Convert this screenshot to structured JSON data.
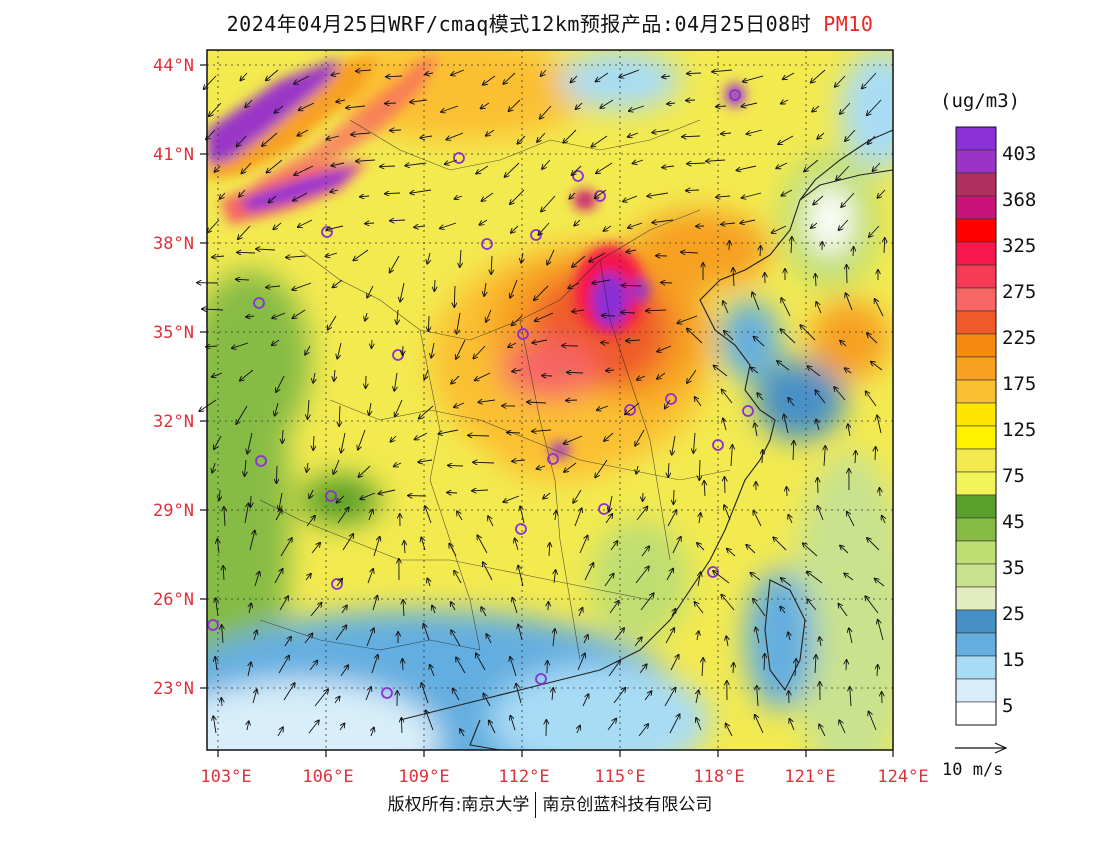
{
  "title": {
    "text": "2024年04月25日WRF/cmaq模式12km预报产品:04月25日08时",
    "pollutant": "PM10"
  },
  "map": {
    "lat_labels": [
      "44°N",
      "41°N",
      "38°N",
      "35°N",
      "32°N",
      "29°N",
      "26°N",
      "23°N"
    ],
    "lon_labels": [
      "103°E",
      "106°E",
      "109°E",
      "112°E",
      "115°E",
      "118°E",
      "121°E",
      "124°E"
    ]
  },
  "legend": {
    "unit": "(ug/m3)",
    "levels": [
      {
        "label": "403",
        "color": "#8b2fd6"
      },
      {
        "label": "",
        "color": "#9a34c8"
      },
      {
        "label": "368",
        "color": "#b03060"
      },
      {
        "label": "",
        "color": "#c81478"
      },
      {
        "label": "325",
        "color": "#ff0000"
      },
      {
        "label": "",
        "color": "#f5184c"
      },
      {
        "label": "275",
        "color": "#f53b55"
      },
      {
        "label": "",
        "color": "#f76565"
      },
      {
        "label": "225",
        "color": "#ef5a2a"
      },
      {
        "label": "",
        "color": "#f58a10"
      },
      {
        "label": "175",
        "color": "#f7a021"
      },
      {
        "label": "",
        "color": "#fbbf33"
      },
      {
        "label": "125",
        "color": "#ffe600"
      },
      {
        "label": "",
        "color": "#fff200"
      },
      {
        "label": "75",
        "color": "#f3ea50"
      },
      {
        "label": "",
        "color": "#f2f55a"
      },
      {
        "label": "45",
        "color": "#5aa02c"
      },
      {
        "label": "",
        "color": "#86bb44"
      },
      {
        "label": "35",
        "color": "#bfde72"
      },
      {
        "label": "",
        "color": "#c9e28e"
      },
      {
        "label": "25",
        "color": "#e2ecc0"
      },
      {
        "label": "",
        "color": "#4690c8"
      },
      {
        "label": "15",
        "color": "#64aee0"
      },
      {
        "label": "",
        "color": "#a8dcf5"
      },
      {
        "label": "5",
        "color": "#d8eefa"
      },
      {
        "label": "",
        "color": "#ffffff"
      }
    ]
  },
  "wind_scale": "10 m/s",
  "footer": {
    "left": "版权所有:南京大学",
    "right": "南京创蓝科技有限公司"
  }
}
